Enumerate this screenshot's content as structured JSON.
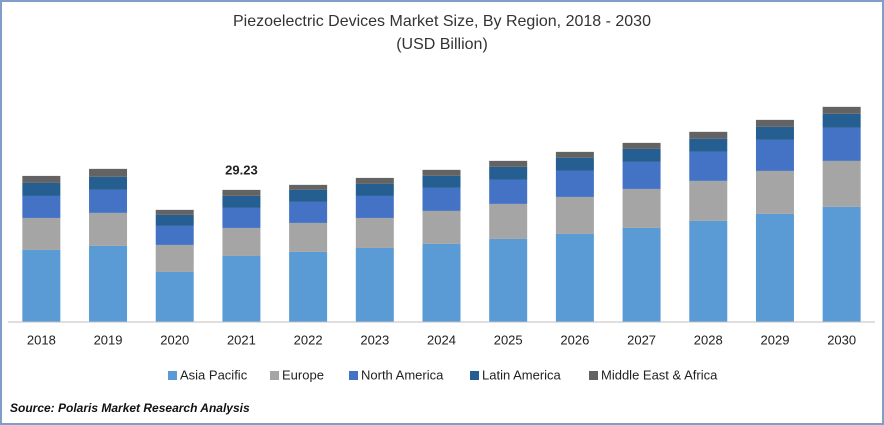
{
  "chart_data": {
    "type": "stacked_bar",
    "title": "Piezoelectric Devices Market Size, By Region, 2018 - 2030",
    "subtitle": "(USD Billion)",
    "source": "Source: Polaris Market Research Analysis",
    "categories": [
      "2018",
      "2019",
      "2020",
      "2021",
      "2022",
      "2023",
      "2024",
      "2025",
      "2026",
      "2027",
      "2028",
      "2029",
      "2030"
    ],
    "series": [
      {
        "name": "Asia Pacific",
        "color": "#5b9bd5",
        "values": [
          15.94,
          16.83,
          11.07,
          14.61,
          15.5,
          16.38,
          17.27,
          18.38,
          19.48,
          20.81,
          22.36,
          23.91,
          25.46
        ]
      },
      {
        "name": "Europe",
        "color": "#a5a5a5",
        "values": [
          7.08,
          7.31,
          5.98,
          6.2,
          6.42,
          6.64,
          7.31,
          7.75,
          8.19,
          8.63,
          8.86,
          9.52,
          10.18
        ]
      },
      {
        "name": "North America",
        "color": "#4472c4",
        "values": [
          4.87,
          5.09,
          4.21,
          4.43,
          4.65,
          4.87,
          5.09,
          5.31,
          5.76,
          5.98,
          6.42,
          6.86,
          7.31
        ]
      },
      {
        "name": "Latin America",
        "color": "#255e91",
        "values": [
          2.88,
          2.88,
          2.44,
          2.66,
          2.66,
          2.66,
          2.66,
          2.88,
          2.88,
          2.88,
          2.88,
          2.88,
          3.1
        ]
      },
      {
        "name": "Middle East & Africa",
        "color": "#636363",
        "values": [
          1.55,
          1.77,
          1.11,
          1.33,
          1.11,
          1.33,
          1.33,
          1.33,
          1.33,
          1.33,
          1.55,
          1.55,
          1.55
        ]
      }
    ],
    "annotations": [
      {
        "x": "2021",
        "text": "29.23"
      }
    ],
    "ylim": [
      0,
      50
    ]
  }
}
